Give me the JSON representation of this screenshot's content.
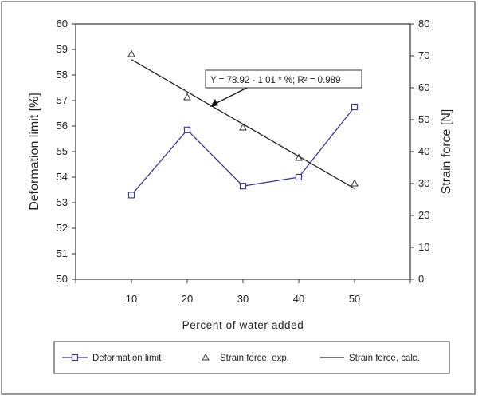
{
  "chart_data": {
    "type": "line",
    "xlabel": "Percent of water added",
    "ylabel_left": "Deformation limit [%]",
    "ylabel_right": "Strain force [N]",
    "x": [
      10,
      20,
      30,
      40,
      50
    ],
    "x_ticks": [
      "10",
      "20",
      "30",
      "40",
      "50"
    ],
    "ylim_left": [
      50,
      60
    ],
    "ylim_right": [
      0,
      80
    ],
    "y_ticks_left": [
      "50",
      "51",
      "52",
      "53",
      "54",
      "55",
      "56",
      "57",
      "58",
      "59",
      "60"
    ],
    "y_ticks_right": [
      "0",
      "10",
      "20",
      "30",
      "40",
      "50",
      "60",
      "70",
      "80"
    ],
    "series": [
      {
        "name": "Deformation limit",
        "axis": "left",
        "marker": "square",
        "color": "#3b3b8f",
        "values": [
          53.3,
          55.85,
          53.65,
          54.0,
          56.75
        ]
      },
      {
        "name": "Strain force, exp.",
        "axis": "right",
        "marker": "triangle",
        "color": "#333333",
        "values": [
          70.5,
          57.0,
          47.5,
          38.0,
          30.0
        ]
      },
      {
        "name": "Strain force, calc.",
        "axis": "right",
        "marker": "none",
        "color": "#222222",
        "values": [
          68.82,
          58.72,
          48.62,
          38.52,
          28.42
        ]
      }
    ],
    "annotation": "Y = 78.92 - 1.01 * %; R² = 0.989",
    "grid": false,
    "legend_position": "bottom"
  }
}
